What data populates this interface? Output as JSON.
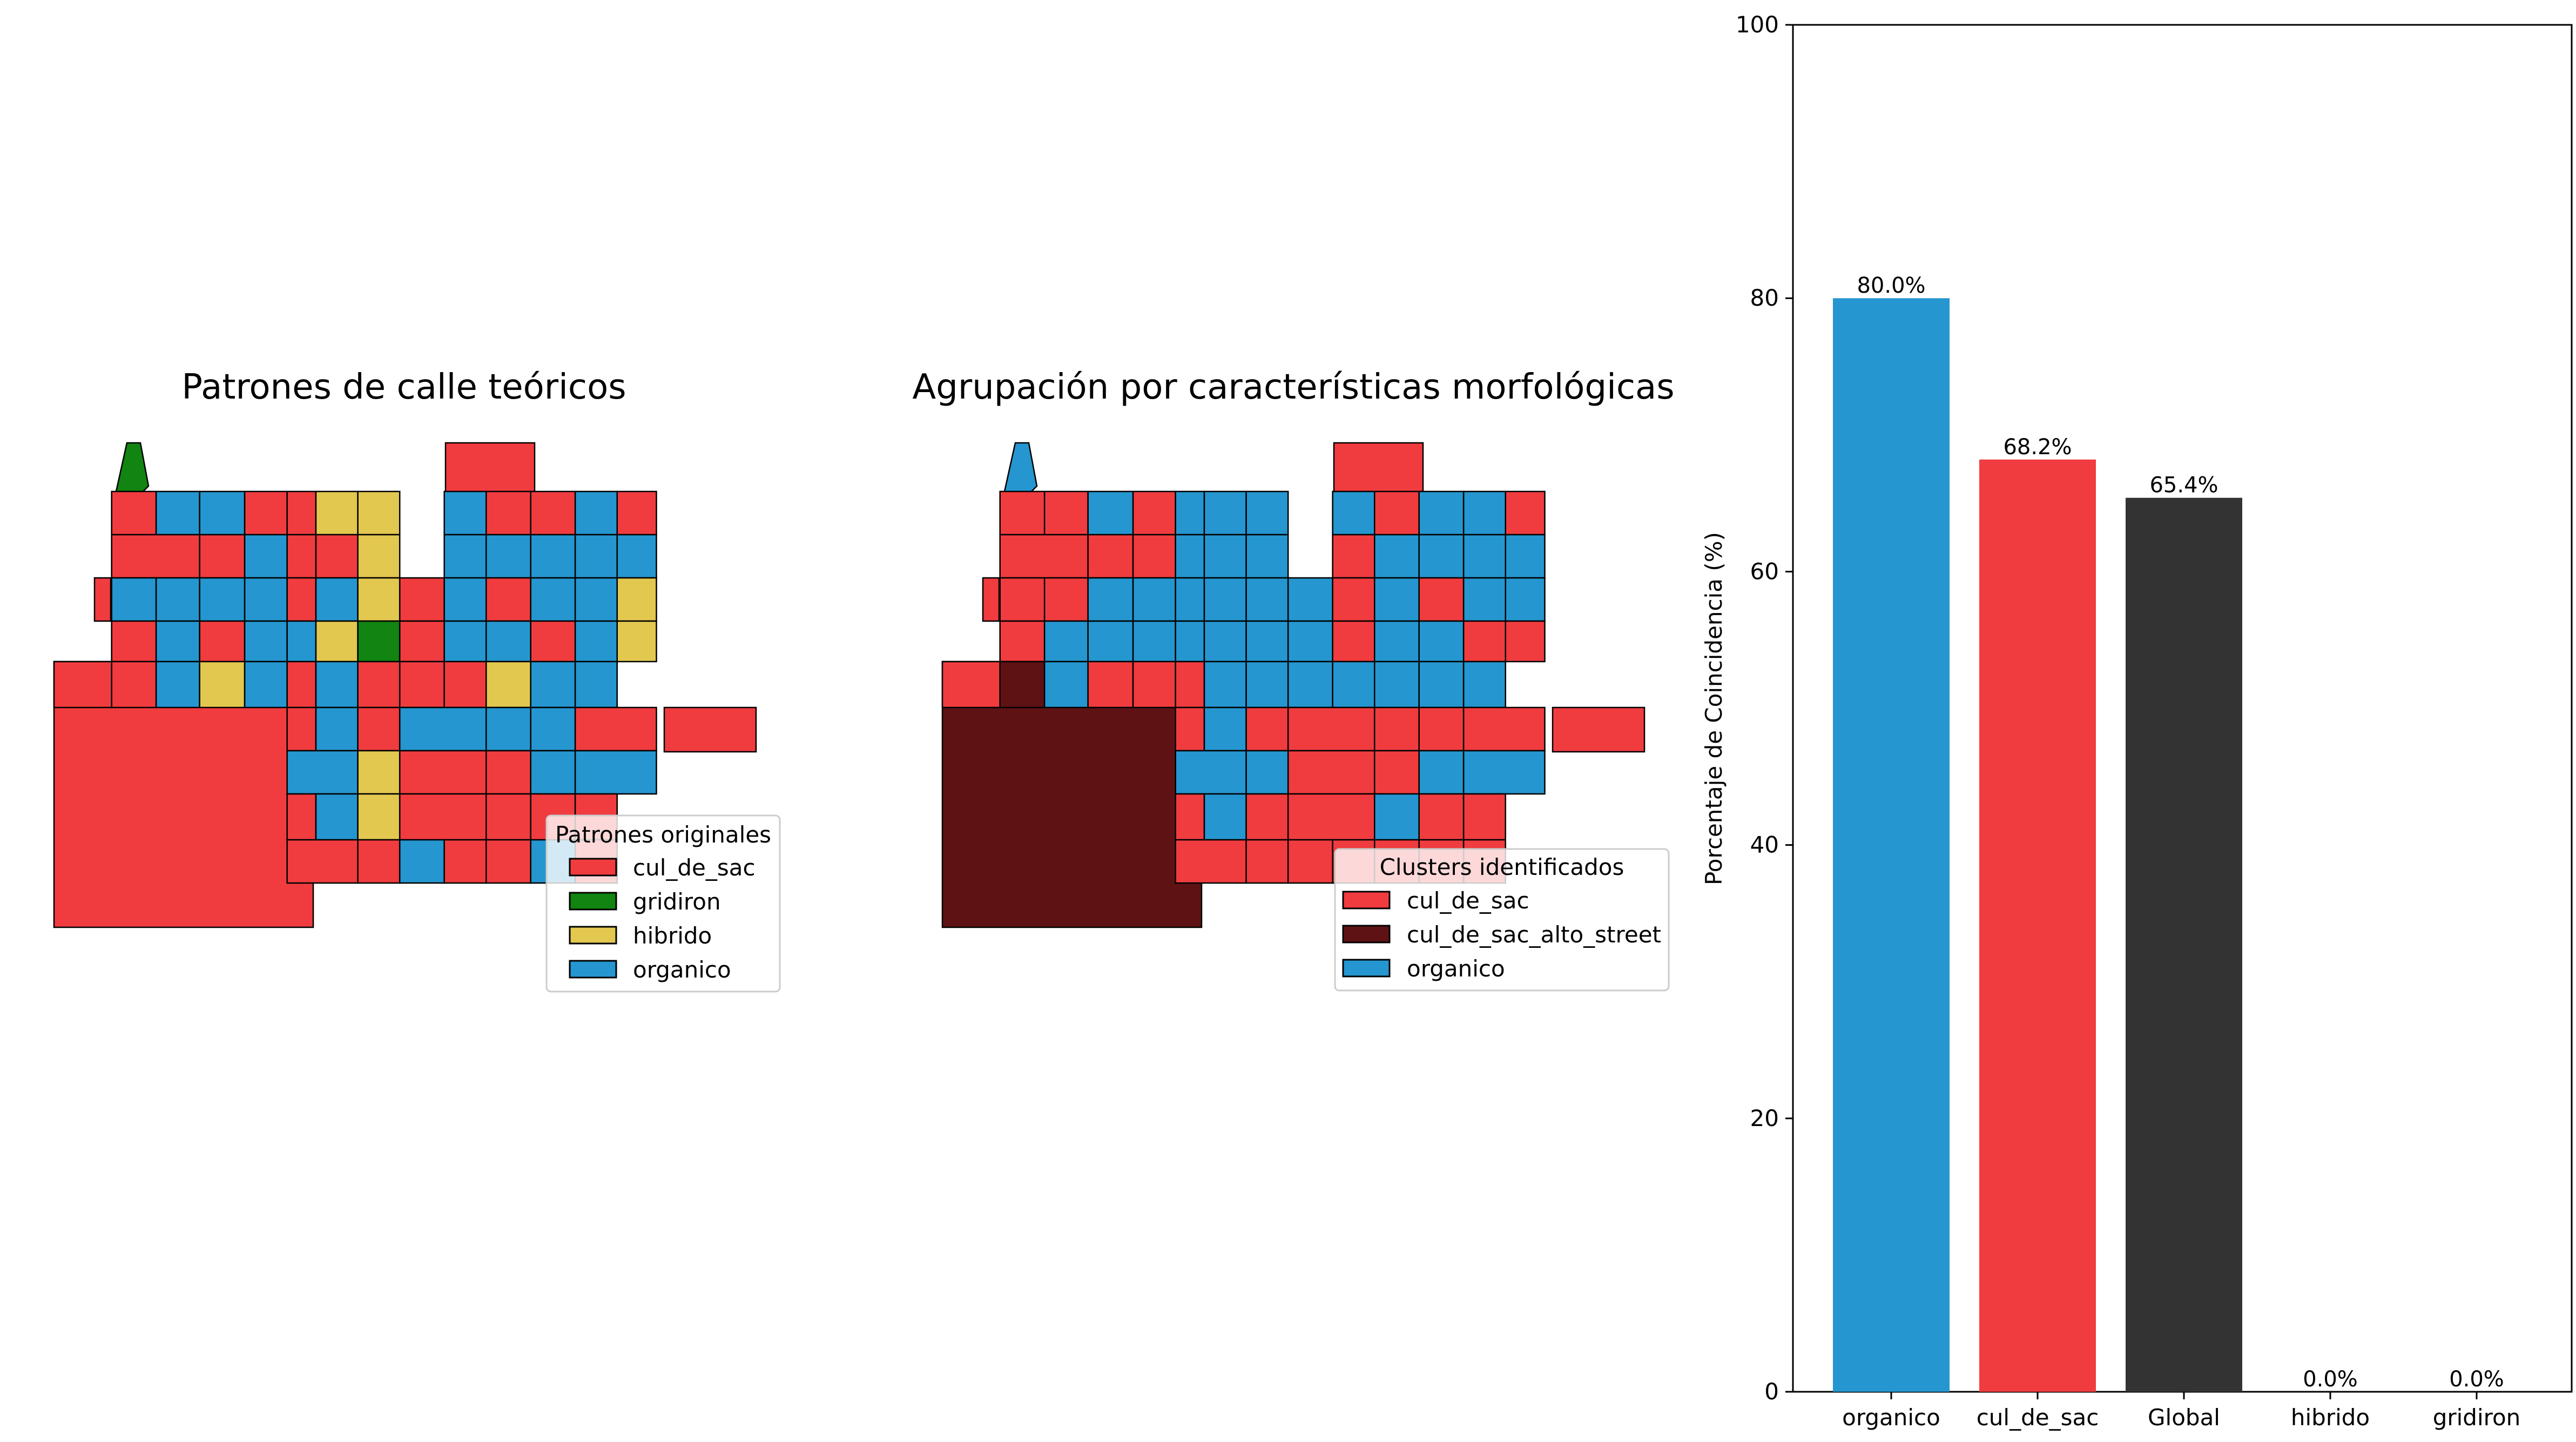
{
  "colors": {
    "cul_de_sac": "#f03c3f",
    "gridiron": "#118411",
    "hibrido": "#e3c850",
    "organico": "#2596cf",
    "cul_de_sac_alto_street": "#5f1214",
    "global": "#333333"
  },
  "maps": [
    {
      "title": "Patrones de calle teóricos",
      "legend": {
        "title": "Patrones originales",
        "items": [
          {
            "label": "cul_de_sac",
            "color": "#f03c3f"
          },
          {
            "label": "gridiron",
            "color": "#118411"
          },
          {
            "label": "hibrido",
            "color": "#e3c850"
          },
          {
            "label": "organico",
            "color": "#2596cf"
          }
        ]
      }
    },
    {
      "title": "Agrupación por características morfológicas",
      "legend": {
        "title": "Clusters identificados",
        "items": [
          {
            "label": "cul_de_sac",
            "color": "#f03c3f"
          },
          {
            "label": "cul_de_sac_alto_street",
            "color": "#5f1214"
          },
          {
            "label": "organico",
            "color": "#2596cf"
          }
        ]
      }
    }
  ],
  "chart_data": {
    "type": "bar",
    "categories": [
      "organico",
      "cul_de_sac",
      "Global",
      "hibrido",
      "gridiron"
    ],
    "values": [
      80.0,
      68.2,
      65.4,
      0.0,
      0.0
    ],
    "value_labels": [
      "80.0%",
      "68.2%",
      "65.4%",
      "0.0%",
      "0.0%"
    ],
    "bar_colors": [
      "#2596cf",
      "#f03c3f",
      "#333333",
      "#2596cf",
      "#2596cf"
    ],
    "ylabel": "Porcentaje de Coincidencia (%)",
    "xlabel": "",
    "ylim": [
      0,
      100
    ],
    "yticks": [
      0,
      20,
      40,
      60,
      80,
      100
    ],
    "grid": false
  }
}
